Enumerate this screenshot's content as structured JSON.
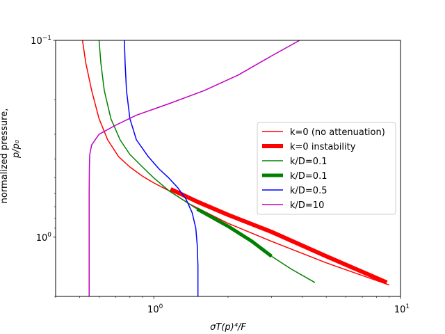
{
  "chart_data": {
    "type": "line",
    "title": "",
    "xlabel": "σT(p)⁴/F",
    "ylabel_line1": "normalized pressure,",
    "ylabel_line2": "p/p₀",
    "xscale": "log",
    "yscale": "log",
    "yaxis_inverted": true,
    "xlim": [
      0.4,
      10
    ],
    "ylim": [
      2.0,
      0.1
    ],
    "x_tick_labels": [
      {
        "value": 1,
        "mantissa": "10",
        "exp": "0"
      },
      {
        "value": 10,
        "mantissa": "10",
        "exp": "1"
      }
    ],
    "y_tick_labels": [
      {
        "value": 0.1,
        "mantissa": "10",
        "exp": "−1"
      },
      {
        "value": 1,
        "mantissa": "10",
        "exp": "0"
      }
    ],
    "grid": false,
    "legend_position": "center-right",
    "series": [
      {
        "name": "k=0 (no attenuation)",
        "color": "#ff0000",
        "width": 1.5,
        "points": [
          [
            0.514,
            0.1
          ],
          [
            0.53,
            0.13
          ],
          [
            0.56,
            0.18
          ],
          [
            0.6,
            0.25
          ],
          [
            0.65,
            0.32
          ],
          [
            0.72,
            0.39
          ],
          [
            0.8,
            0.44
          ],
          [
            0.9,
            0.49
          ],
          [
            1.0,
            0.53
          ],
          [
            1.15,
            0.58
          ],
          [
            1.4,
            0.68
          ],
          [
            2.0,
            0.85
          ],
          [
            3.0,
            1.05
          ],
          [
            5.0,
            1.35
          ],
          [
            9.0,
            1.75
          ]
        ]
      },
      {
        "name": "k=0 instability",
        "color": "#ff0000",
        "width": 6,
        "points": [
          [
            1.17,
            0.57
          ],
          [
            1.5,
            0.66
          ],
          [
            2.0,
            0.77
          ],
          [
            3.0,
            0.94
          ],
          [
            5.0,
            1.25
          ],
          [
            7.0,
            1.5
          ],
          [
            8.8,
            1.7
          ]
        ]
      },
      {
        "name": "k/D=0.1",
        "color": "#008000",
        "width": 1.5,
        "points": [
          [
            0.6,
            0.1
          ],
          [
            0.61,
            0.13
          ],
          [
            0.63,
            0.18
          ],
          [
            0.67,
            0.25
          ],
          [
            0.73,
            0.32
          ],
          [
            0.8,
            0.38
          ],
          [
            0.9,
            0.44
          ],
          [
            1.0,
            0.5
          ],
          [
            1.15,
            0.58
          ],
          [
            1.5,
            0.72
          ],
          [
            2.0,
            0.88
          ],
          [
            3.0,
            1.25
          ],
          [
            3.6,
            1.45
          ],
          [
            4.5,
            1.7
          ]
        ]
      },
      {
        "name": "k/D=0.1",
        "color": "#008000",
        "width": 5,
        "points": [
          [
            1.5,
            0.72
          ],
          [
            2.0,
            0.88
          ],
          [
            2.5,
            1.05
          ],
          [
            3.0,
            1.25
          ]
        ]
      },
      {
        "name": "k/D=0.5",
        "color": "#0000ff",
        "width": 1.5,
        "points": [
          [
            0.76,
            0.1
          ],
          [
            0.765,
            0.13
          ],
          [
            0.775,
            0.18
          ],
          [
            0.8,
            0.25
          ],
          [
            0.85,
            0.32
          ],
          [
            0.95,
            0.39
          ],
          [
            1.05,
            0.45
          ],
          [
            1.15,
            0.5
          ],
          [
            1.25,
            0.56
          ],
          [
            1.35,
            0.64
          ],
          [
            1.43,
            0.75
          ],
          [
            1.48,
            0.9
          ],
          [
            1.5,
            1.1
          ],
          [
            1.51,
            1.4
          ],
          [
            1.51,
            2.0
          ]
        ]
      },
      {
        "name": "k/D=10",
        "color": "#bf00bf",
        "width": 1.5,
        "points": [
          [
            3.9,
            0.1
          ],
          [
            3.0,
            0.12
          ],
          [
            2.2,
            0.15
          ],
          [
            1.6,
            0.18
          ],
          [
            1.15,
            0.21
          ],
          [
            0.85,
            0.24
          ],
          [
            0.7,
            0.27
          ],
          [
            0.6,
            0.3
          ],
          [
            0.56,
            0.34
          ],
          [
            0.55,
            0.38
          ],
          [
            0.548,
            0.45
          ],
          [
            0.547,
            0.6
          ],
          [
            0.547,
            1.0
          ],
          [
            0.547,
            2.0
          ]
        ]
      }
    ]
  }
}
